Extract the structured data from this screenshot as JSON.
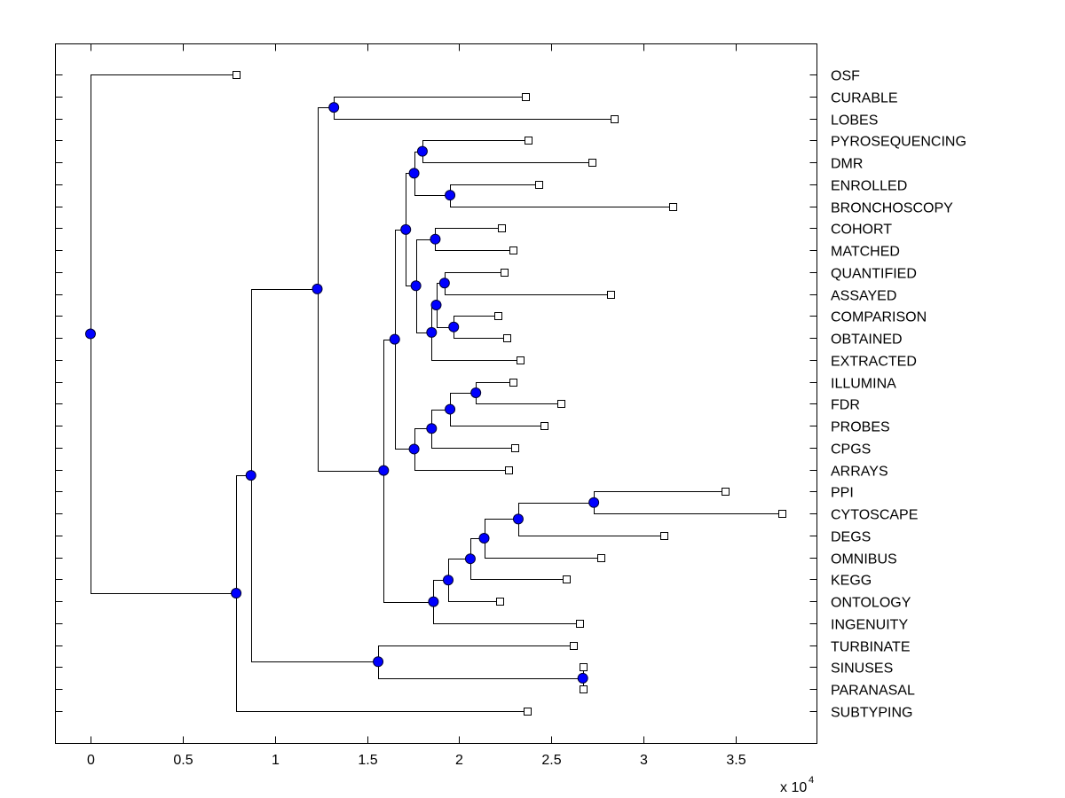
{
  "chart_data": {
    "type": "dendrogram",
    "title": "",
    "xlabel": "",
    "ylabel": "",
    "x_multiplier_label": "x 10",
    "x_multiplier_exponent": "4",
    "xlim": [
      -0.19,
      3.94
    ],
    "xticks": [
      0,
      0.5,
      1,
      1.5,
      2,
      2.5,
      3,
      3.5
    ],
    "xtick_labels": [
      "0",
      "0.5",
      "1",
      "1.5",
      "2",
      "2.5",
      "3",
      "3.5"
    ],
    "grid": false,
    "colors": {
      "node_fill": "#0000ff",
      "leaf_fill": "#ffffff",
      "line": "#000000"
    },
    "leaves": [
      {
        "label": "OSF",
        "x": 0.79
      },
      {
        "label": "CURABLE",
        "x": 2.36
      },
      {
        "label": "LOBES",
        "x": 2.84
      },
      {
        "label": "PYROSEQUENCING",
        "x": 2.375
      },
      {
        "label": "DMR",
        "x": 2.72
      },
      {
        "label": "ENROLLED",
        "x": 2.43
      },
      {
        "label": "BRONCHOSCOPY",
        "x": 3.16
      },
      {
        "label": "COHORT",
        "x": 2.23
      },
      {
        "label": "MATCHED",
        "x": 2.29
      },
      {
        "label": "QUANTIFIED",
        "x": 2.245
      },
      {
        "label": "ASSAYED",
        "x": 2.82
      },
      {
        "label": "COMPARISON",
        "x": 2.21
      },
      {
        "label": "OBTAINED",
        "x": 2.26
      },
      {
        "label": "EXTRACTED",
        "x": 2.33
      },
      {
        "label": "ILLUMINA",
        "x": 2.29
      },
      {
        "label": "FDR",
        "x": 2.55
      },
      {
        "label": "PROBES",
        "x": 2.46
      },
      {
        "label": "CPGS",
        "x": 2.3
      },
      {
        "label": "ARRAYS",
        "x": 2.265
      },
      {
        "label": "PPI",
        "x": 3.44
      },
      {
        "label": "CYTOSCAPE",
        "x": 3.75
      },
      {
        "label": "DEGS",
        "x": 3.11
      },
      {
        "label": "OMNIBUS",
        "x": 2.77
      },
      {
        "label": "KEGG",
        "x": 2.58
      },
      {
        "label": "ONTOLOGY",
        "x": 2.22
      },
      {
        "label": "INGENUITY",
        "x": 2.65
      },
      {
        "label": "TURBINATE",
        "x": 2.62
      },
      {
        "label": "SINUSES",
        "x": 2.67
      },
      {
        "label": "PARANASAL",
        "x": 2.67
      },
      {
        "label": "SUBTYPING",
        "x": 2.37
      }
    ],
    "tree": {
      "x": 0,
      "children": [
        {
          "leaf": 0
        },
        {
          "x": 0.79,
          "children": [
            {
              "x": 0.87,
              "children": [
                {
                  "x": 1.23,
                  "children": [
                    {
                      "x": 1.32,
                      "children": [
                        {
                          "leaf": 1
                        },
                        {
                          "leaf": 2
                        }
                      ]
                    },
                    {
                      "x": 1.59,
                      "children": [
                        {
                          "x": 1.65,
                          "children": [
                            {
                              "x": 1.71,
                              "children": [
                                {
                                  "x": 1.755,
                                  "children": [
                                    {
                                      "x": 1.8,
                                      "children": [
                                        {
                                          "leaf": 3
                                        },
                                        {
                                          "leaf": 4
                                        }
                                      ]
                                    },
                                    {
                                      "x": 1.95,
                                      "children": [
                                        {
                                          "leaf": 5
                                        },
                                        {
                                          "leaf": 6
                                        }
                                      ]
                                    }
                                  ]
                                },
                                {
                                  "x": 1.765,
                                  "children": [
                                    {
                                      "x": 1.87,
                                      "children": [
                                        {
                                          "leaf": 7
                                        },
                                        {
                                          "leaf": 8
                                        }
                                      ]
                                    },
                                    {
                                      "x": 1.85,
                                      "children": [
                                        {
                                          "x": 1.875,
                                          "children": [
                                            {
                                              "x": 1.92,
                                              "children": [
                                                {
                                                  "leaf": 9
                                                },
                                                {
                                                  "leaf": 10
                                                }
                                              ]
                                            },
                                            {
                                              "x": 1.97,
                                              "children": [
                                                {
                                                  "leaf": 11
                                                },
                                                {
                                                  "leaf": 12
                                                }
                                              ]
                                            }
                                          ]
                                        },
                                        {
                                          "leaf": 13
                                        }
                                      ]
                                    }
                                  ]
                                }
                              ]
                            },
                            {
                              "x": 1.755,
                              "children": [
                                {
                                  "x": 1.85,
                                  "children": [
                                    {
                                      "x": 1.95,
                                      "children": [
                                        {
                                          "x": 2.09,
                                          "children": [
                                            {
                                              "leaf": 14
                                            },
                                            {
                                              "leaf": 15
                                            }
                                          ]
                                        },
                                        {
                                          "leaf": 16
                                        }
                                      ]
                                    },
                                    {
                                      "leaf": 17
                                    }
                                  ]
                                },
                                {
                                  "leaf": 18
                                }
                              ]
                            }
                          ]
                        },
                        {
                          "x": 1.86,
                          "children": [
                            {
                              "x": 1.94,
                              "children": [
                                {
                                  "x": 2.06,
                                  "children": [
                                    {
                                      "x": 2.135,
                                      "children": [
                                        {
                                          "x": 2.32,
                                          "children": [
                                            {
                                              "x": 2.73,
                                              "children": [
                                                {
                                                  "leaf": 19
                                                },
                                                {
                                                  "leaf": 20
                                                }
                                              ]
                                            },
                                            {
                                              "leaf": 21
                                            }
                                          ]
                                        },
                                        {
                                          "leaf": 22
                                        }
                                      ]
                                    },
                                    {
                                      "leaf": 23
                                    }
                                  ]
                                },
                                {
                                  "leaf": 24
                                }
                              ]
                            },
                            {
                              "leaf": 25
                            }
                          ]
                        }
                      ]
                    }
                  ]
                },
                {
                  "x": 1.56,
                  "children": [
                    {
                      "leaf": 26
                    },
                    {
                      "x": 2.67,
                      "children": [
                        {
                          "leaf": 27
                        },
                        {
                          "leaf": 28
                        }
                      ]
                    }
                  ]
                }
              ]
            },
            {
              "leaf": 29
            }
          ]
        }
      ]
    }
  }
}
